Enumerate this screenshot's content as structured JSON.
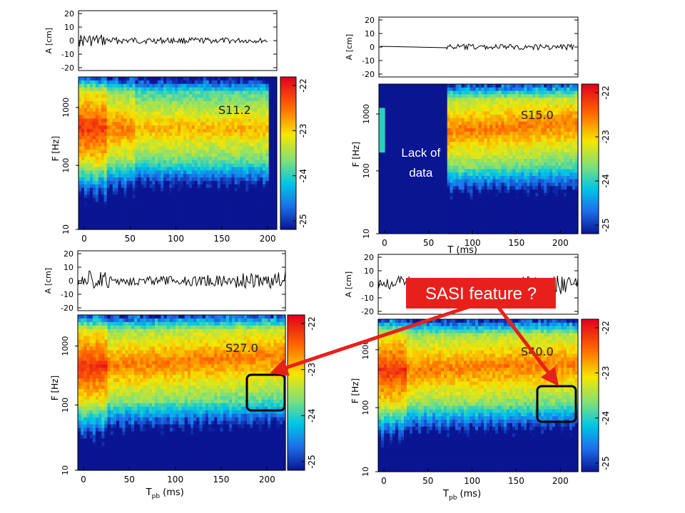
{
  "panels": [
    {
      "label": "S11.2",
      "strain": {
        "ylabel": "A [cm]",
        "yticks": [
          20,
          10,
          0,
          -10,
          -20
        ],
        "trace": {
          "start": 0,
          "end": 200,
          "amp": 2.2,
          "decay": 0.3,
          "boost_end": 0
        }
      },
      "spectrogram": {
        "ylabel": "F [Hz]",
        "yticks": [
          "1000",
          "100",
          "10"
        ],
        "xticks": [
          "0",
          "50",
          "100",
          "150",
          "200"
        ],
        "xlabel": "",
        "xlim": [
          0,
          210
        ],
        "data_end": 200,
        "gap_end": 0,
        "colorbar_ticks": [
          "-22",
          "-23",
          "-24",
          "-25"
        ],
        "band_rise": 0
      }
    },
    {
      "label": "S15.0",
      "strain": {
        "ylabel": "A [cm]",
        "yticks": [
          20,
          10,
          0,
          -10,
          -20
        ],
        "trace": {
          "start": 75,
          "end": 215,
          "amp": 1.8,
          "decay": 0,
          "boost_end": 0
        }
      },
      "spectrogram": {
        "ylabel": "F [Hz]",
        "yticks": [
          "1000",
          "100",
          "10"
        ],
        "xticks": [
          "0",
          "50",
          "100",
          "150",
          "200"
        ],
        "xlabel": "T    (ms)",
        "xlim": [
          0,
          220
        ],
        "data_end": 220,
        "gap_end": 77,
        "gap_text": [
          "Lack of",
          "data"
        ],
        "colorbar_ticks": [
          "-22",
          "-23",
          "-24",
          "-25"
        ],
        "band_rise": 1
      }
    },
    {
      "label": "S27.0",
      "strain": {
        "ylabel": "A [cm]",
        "yticks": [
          20,
          10,
          0,
          -10,
          -20
        ],
        "trace": {
          "start": 0,
          "end": 220,
          "amp": 3.5,
          "decay": 0,
          "boost_end": 1
        }
      },
      "spectrogram": {
        "ylabel": "F [Hz]",
        "yticks": [
          "1000",
          "100",
          "10"
        ],
        "xticks": [
          "0",
          "50",
          "100",
          "150",
          "200"
        ],
        "xlabel": "T",
        "xlabel_sub": "pb",
        "xlabel_unit": "(ms)",
        "xlim": [
          0,
          220
        ],
        "data_end": 220,
        "gap_end": 0,
        "colorbar_ticks": [
          "-22",
          "-23",
          "-24",
          "-25"
        ],
        "band_rise": 1
      }
    },
    {
      "label": "S40.0",
      "strain": {
        "ylabel": "A [cm]",
        "yticks": [
          20,
          10,
          0,
          -10,
          -20
        ],
        "trace": {
          "start": 0,
          "end": 220,
          "amp": 4,
          "decay": 0,
          "boost_end": 1
        }
      },
      "spectrogram": {
        "ylabel": "F [Hz]",
        "yticks": [
          "1000",
          "100",
          "10"
        ],
        "xticks": [
          "0",
          "50",
          "100",
          "150",
          "200"
        ],
        "xlabel": "T",
        "xlabel_sub": "pb",
        "xlabel_unit": "(ms)",
        "xlim": [
          0,
          220
        ],
        "data_end": 220,
        "gap_end": 0,
        "colorbar_ticks": [
          "-22",
          "-23",
          "-24",
          "-25"
        ],
        "band_rise": 0.6
      }
    }
  ],
  "callout": {
    "text": "SASI feature ?",
    "color": "#e8201c"
  },
  "colors": {
    "box_outline": "#000000",
    "arrow": "#e8201c",
    "gap_fill": "#0d2568"
  },
  "chart_data": [
    {
      "type": "heatmap",
      "title": "S11.2",
      "ylabel": "F [Hz]",
      "xlabel": "",
      "xlim": [
        0,
        210
      ],
      "ylim": [
        10,
        3000
      ],
      "y_scale": "log",
      "colorbar_range": [
        -25,
        -22
      ],
      "notes": ""
    },
    {
      "type": "heatmap",
      "title": "S15.0",
      "ylabel": "F [Hz]",
      "xlabel": "T (ms)",
      "xlim": [
        0,
        220
      ],
      "ylim": [
        10,
        3000
      ],
      "y_scale": "log",
      "colorbar_range": [
        -25,
        -22
      ],
      "annotation": "Lack of data"
    },
    {
      "type": "heatmap",
      "title": "S27.0",
      "ylabel": "F [Hz]",
      "xlabel": "Tpb (ms)",
      "xlim": [
        0,
        220
      ],
      "ylim": [
        10,
        3000
      ],
      "y_scale": "log",
      "colorbar_range": [
        -25,
        -22
      ],
      "highlight_region": {
        "x": [
          180,
          210
        ],
        "f": [
          70,
          300
        ]
      }
    },
    {
      "type": "heatmap",
      "title": "S40.0",
      "ylabel": "F [Hz]",
      "xlabel": "Tpb (ms)",
      "xlim": [
        0,
        220
      ],
      "ylim": [
        10,
        3000
      ],
      "y_scale": "log",
      "colorbar_range": [
        -25,
        -22
      ],
      "highlight_region": {
        "x": [
          175,
          205
        ],
        "f": [
          60,
          250
        ]
      }
    }
  ]
}
